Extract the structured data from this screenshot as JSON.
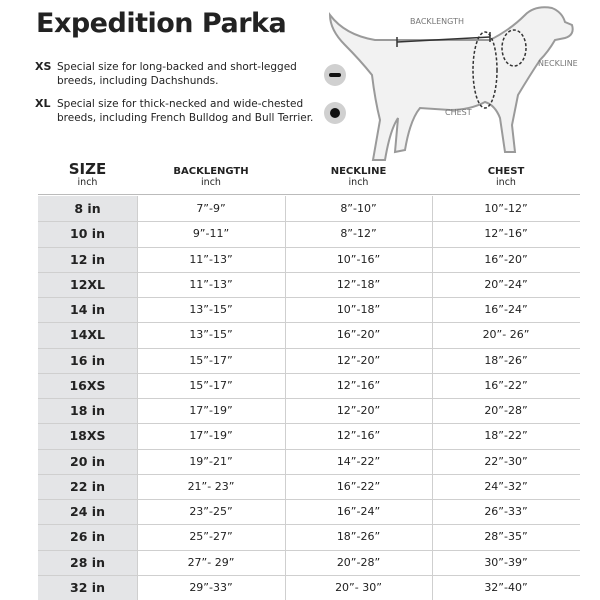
{
  "header": {
    "title": "Expedition Parka"
  },
  "notes": [
    {
      "code": "XS",
      "text": "Special size for long-backed and short-legged breeds, including Dachshunds."
    },
    {
      "code": "XL",
      "text": "Special size for thick-necked and wide-chested breeds, including French Bulldog and Bull Terrier."
    }
  ],
  "diagram": {
    "backlength": "BACKLENGTH",
    "neckline": "NECKLINE",
    "chest": "CHEST"
  },
  "table": {
    "columns": [
      {
        "name": "SIZE",
        "unit": "inch"
      },
      {
        "name": "BACKLENGTH",
        "unit": "inch"
      },
      {
        "name": "NECKLINE",
        "unit": "inch"
      },
      {
        "name": "CHEST",
        "unit": "inch"
      }
    ],
    "rows": [
      [
        "8 in",
        "7”-9”",
        "8”-10”",
        "10”-12”"
      ],
      [
        "10 in",
        "9”-11”",
        "8”-12”",
        "12”-16”"
      ],
      [
        "12 in",
        "11”-13”",
        "10”-16”",
        "16”-20”"
      ],
      [
        "12XL",
        "11”-13”",
        "12”-18”",
        "20”-24”"
      ],
      [
        "14 in",
        "13”-15”",
        "10”-18”",
        "16”-24”"
      ],
      [
        "14XL",
        "13”-15”",
        "16”-20”",
        "20”- 26”"
      ],
      [
        "16 in",
        "15”-17”",
        "12”-20”",
        "18”-26”"
      ],
      [
        "16XS",
        "15”-17”",
        "12”-16”",
        "16”-22”"
      ],
      [
        "18 in",
        "17”-19”",
        "12”-20”",
        "20”-28”"
      ],
      [
        "18XS",
        "17”-19”",
        "12”-16”",
        "18”-22”"
      ],
      [
        "20 in",
        "19”-21”",
        "14”-22”",
        "22”-30”"
      ],
      [
        "22 in",
        "21”- 23”",
        "16”-22”",
        "24”-32”"
      ],
      [
        "24 in",
        "23”-25”",
        "16”-24”",
        "26”-33”"
      ],
      [
        "26 in",
        "25”-27”",
        "18”-26”",
        "28”-35”"
      ],
      [
        "28 in",
        "27”- 29”",
        "20”-28”",
        "30”-39”"
      ],
      [
        "32 in",
        "29”-33”",
        "20”- 30”",
        "32”-40”"
      ]
    ]
  }
}
